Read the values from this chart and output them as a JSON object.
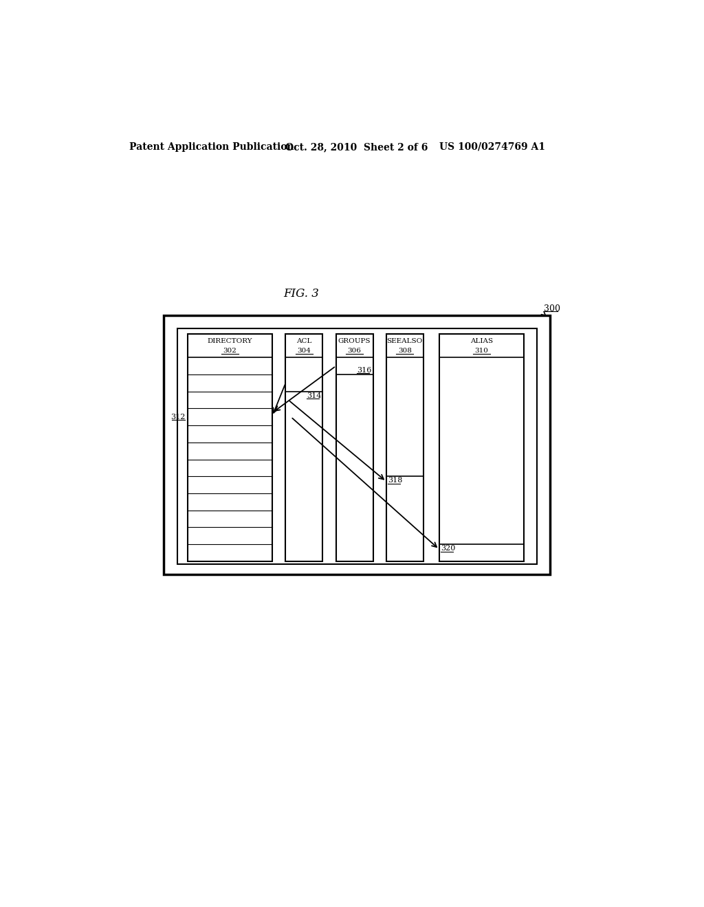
{
  "bg_color": "#ffffff",
  "header_text": "Patent Application Publication",
  "header_date": "Oct. 28, 2010  Sheet 2 of 6",
  "header_patent": "US 100/0274769 A1",
  "fig_label": "FIG. 3",
  "ref_300": "300",
  "columns": [
    {
      "name": "DIRECTORY",
      "ref": "302"
    },
    {
      "name": "ACL",
      "ref": "304"
    },
    {
      "name": "GROUPS",
      "ref": "306"
    },
    {
      "name": "SEEALSO",
      "ref": "308"
    },
    {
      "name": "ALIAS",
      "ref": "310"
    }
  ],
  "ref_312": "312",
  "ref_314": "314",
  "ref_316": "316",
  "ref_318": "318",
  "ref_320": "320"
}
